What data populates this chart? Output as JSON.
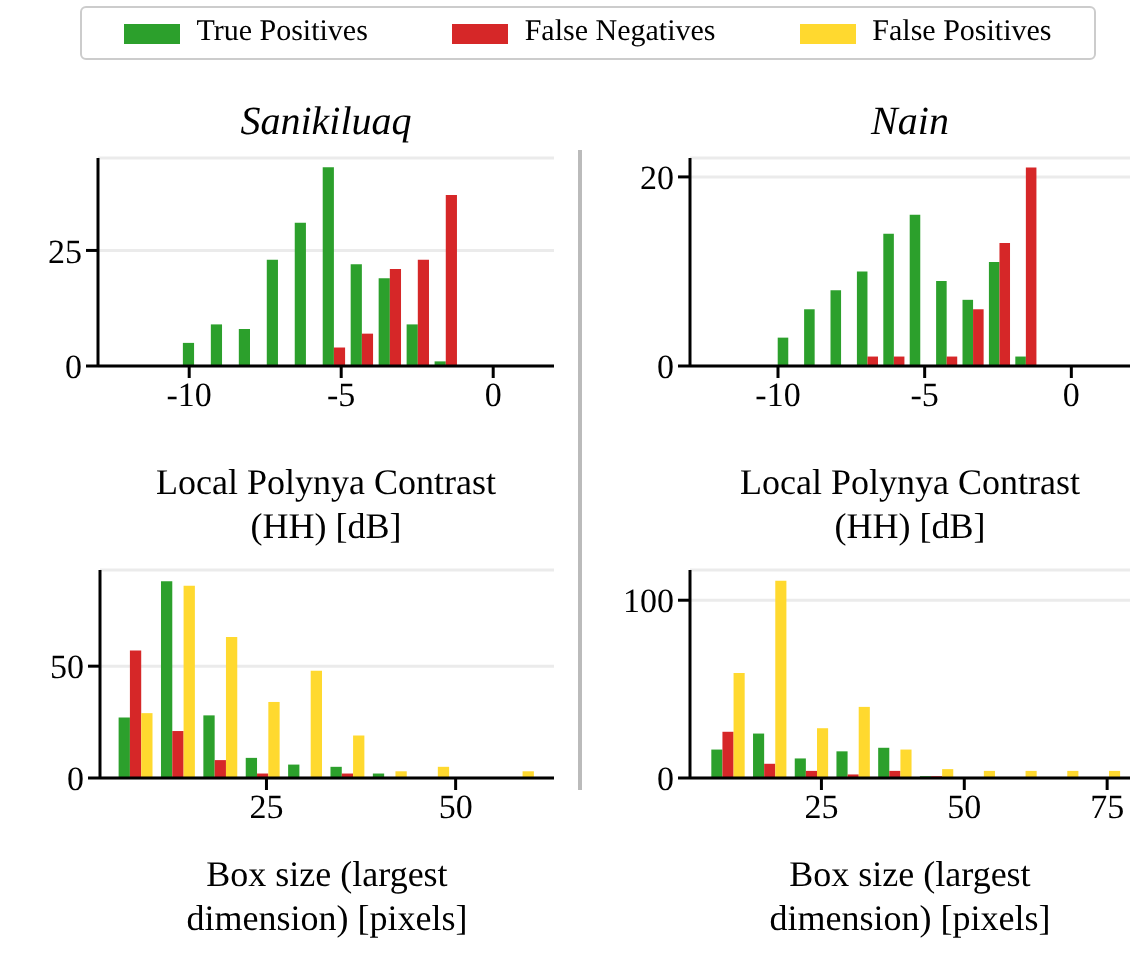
{
  "chart_data": [
    {
      "type": "histogram",
      "title": "Sanikiluaq",
      "xlabel": "Local Polynya Contrast\n(HH) [dB]",
      "bins": [
        -10.3,
        -9.38,
        -8.46,
        -7.54,
        -6.62,
        -5.7,
        -4.78,
        -3.86,
        -2.94,
        -2.02,
        -1.1
      ],
      "xlim": [
        -13,
        2
      ],
      "xticks": [
        -10,
        -5,
        0
      ],
      "ylim": [
        0,
        45
      ],
      "yticks": [
        0,
        25
      ],
      "grid": "y",
      "legend": "top",
      "series": [
        {
          "name": "True Positives",
          "color": "#2ca02c",
          "values": [
            5,
            9,
            8,
            23,
            31,
            43,
            22,
            19,
            9,
            1
          ]
        },
        {
          "name": "False Negatives",
          "color": "#d62728",
          "values": [
            0,
            0,
            0,
            0,
            0,
            4,
            7,
            21,
            23,
            37
          ]
        }
      ]
    },
    {
      "type": "histogram",
      "title": "Nain",
      "xlabel": "Local Polynya Contrast\n(HH) [dB]",
      "bins": [
        -10.1,
        -9.2,
        -8.3,
        -7.4,
        -6.5,
        -5.6,
        -4.7,
        -3.8,
        -2.9,
        -2.0,
        -1.1
      ],
      "xlim": [
        -13,
        2
      ],
      "xticks": [
        -10,
        -5,
        0
      ],
      "ylim": [
        0,
        22
      ],
      "yticks": [
        0,
        20
      ],
      "grid": "y",
      "legend": "top",
      "series": [
        {
          "name": "True Positives",
          "color": "#2ca02c",
          "values": [
            3,
            6,
            8,
            10,
            14,
            16,
            9,
            7,
            11,
            1
          ]
        },
        {
          "name": "False Negatives",
          "color": "#d62728",
          "values": [
            0,
            0,
            0,
            1,
            1,
            0,
            1,
            6,
            13,
            21
          ]
        }
      ]
    },
    {
      "type": "histogram",
      "xlabel": "Box size (largest\ndimension) [pixels]",
      "bins": [
        4.9,
        10.5,
        16.1,
        21.7,
        27.3,
        32.9,
        38.5,
        44.1,
        49.7,
        55.3,
        60.9
      ],
      "xlim": [
        3,
        63
      ],
      "xticks": [
        25,
        50
      ],
      "ylim": [
        0,
        93
      ],
      "yticks": [
        0,
        50
      ],
      "grid": "y",
      "legend": "top",
      "series": [
        {
          "name": "True Positives",
          "color": "#2ca02c",
          "values": [
            27,
            88,
            28,
            9,
            6,
            5,
            2,
            0,
            0,
            0
          ]
        },
        {
          "name": "False Negatives",
          "color": "#d62728",
          "values": [
            57,
            21,
            8,
            2,
            0,
            2,
            0,
            0,
            0,
            0
          ]
        },
        {
          "name": "False Positives",
          "color": "#ffd92f",
          "values": [
            29,
            86,
            63,
            34,
            48,
            19,
            3,
            5,
            0,
            3
          ]
        }
      ]
    },
    {
      "type": "histogram",
      "xlabel": "Box size (largest\ndimension) [pixels]",
      "bins": [
        5.0,
        12.3,
        19.6,
        26.9,
        34.2,
        41.5,
        48.8,
        56.1,
        63.4,
        70.7,
        78.0
      ],
      "xlim": [
        2,
        79
      ],
      "xticks": [
        25,
        50,
        75
      ],
      "ylim": [
        0,
        117
      ],
      "yticks": [
        0,
        100
      ],
      "grid": "y",
      "legend": "top",
      "series": [
        {
          "name": "True Positives",
          "color": "#2ca02c",
          "values": [
            16,
            25,
            11,
            15,
            17,
            1,
            0,
            0,
            0,
            0
          ]
        },
        {
          "name": "False Negatives",
          "color": "#d62728",
          "values": [
            26,
            8,
            4,
            2,
            4,
            1,
            0,
            0,
            0,
            0
          ]
        },
        {
          "name": "False Positives",
          "color": "#ffd92f",
          "values": [
            59,
            111,
            28,
            40,
            16,
            5,
            4,
            4,
            4,
            4
          ]
        }
      ]
    }
  ]
}
